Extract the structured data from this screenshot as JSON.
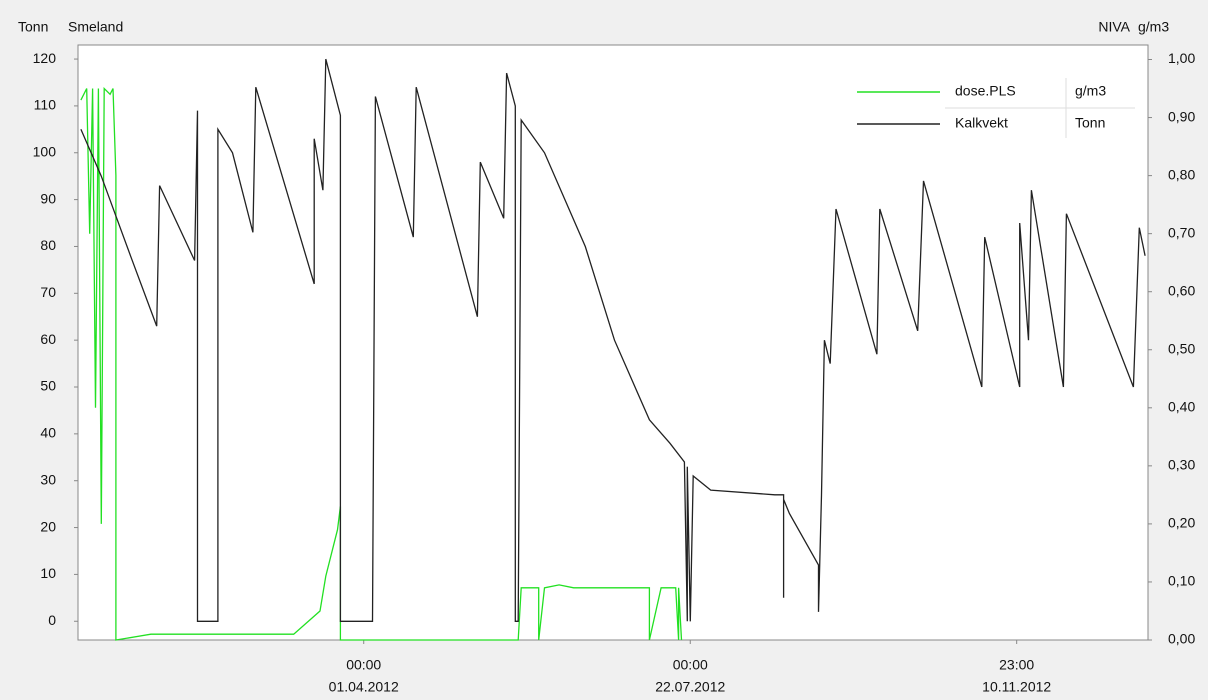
{
  "chart_data": {
    "type": "line",
    "title": "Smeland",
    "title_right": "NIVA",
    "y_label": "Tonn",
    "y2_label": "g/m3",
    "xlim": [
      "2011-12-25",
      "2012-12-26"
    ],
    "xticks": [
      {
        "value": "2012-04-01T00:00",
        "label": [
          "00:00",
          "01.04.2012"
        ]
      },
      {
        "value": "2012-07-22T00:00",
        "label": [
          "00:00",
          "22.07.2012"
        ]
      },
      {
        "value": "2012-11-10T23:00",
        "label": [
          "23:00",
          "10.11.2012"
        ]
      }
    ],
    "ylim": [
      -4,
      123
    ],
    "yticks": [
      0,
      10,
      20,
      30,
      40,
      50,
      60,
      70,
      80,
      90,
      100,
      110,
      120
    ],
    "y2lim": [
      0,
      1.025
    ],
    "y2ticks": [
      {
        "value": 0,
        "label": "0,00"
      },
      {
        "value": 0.1,
        "label": "0,10"
      },
      {
        "value": 0.2,
        "label": "0,20"
      },
      {
        "value": 0.3,
        "label": "0,30"
      },
      {
        "value": 0.4,
        "label": "0,40"
      },
      {
        "value": 0.5,
        "label": "0,50"
      },
      {
        "value": 0.6,
        "label": "0,60"
      },
      {
        "value": 0.7,
        "label": "0,70"
      },
      {
        "value": 0.8,
        "label": "0,80"
      },
      {
        "value": 0.9,
        "label": "0,90"
      },
      {
        "value": 1,
        "label": "1,00"
      }
    ],
    "grid": false,
    "legend": "upper right",
    "series": [
      {
        "name": "dose.PLS",
        "unit": "g/m3",
        "color": "#22e022",
        "axis": "y2",
        "x": [
          "2011-12-26",
          "2011-12-28",
          "2011-12-29",
          "2011-12-30",
          "2011-12-31",
          "2012-01-01",
          "2012-01-02",
          "2012-01-03",
          "2012-01-05",
          "2012-01-06",
          "2012-01-07",
          "2012-01-07",
          "2012-01-19",
          "2012-02-05",
          "2012-03-08",
          "2012-03-17",
          "2012-03-19",
          "2012-03-23",
          "2012-03-24",
          "2012-03-24",
          "2012-05-24",
          "2012-05-25",
          "2012-05-31",
          "2012-05-31",
          "2012-06-02",
          "2012-06-07",
          "2012-06-12",
          "2012-06-21",
          "2012-07-08",
          "2012-07-08",
          "2012-07-12",
          "2012-07-17",
          "2012-07-18",
          "2012-07-18",
          "2012-07-19"
        ],
        "values": [
          0.93,
          0.95,
          0.7,
          0.95,
          0.4,
          0.95,
          0.2,
          0.95,
          0.94,
          0.95,
          0.8,
          0,
          0.01,
          0.01,
          0.01,
          0.05,
          0.11,
          0.19,
          0.23,
          0,
          0,
          0.09,
          0.09,
          0,
          0.09,
          0.095,
          0.09,
          0.09,
          0.09,
          0,
          0.09,
          0.09,
          0,
          0.09,
          0
        ]
      },
      {
        "name": "Kalkvekt",
        "unit": "Tonn",
        "color": "#222222",
        "x": [
          "2011-12-26",
          "2012-01-02",
          "2012-01-12",
          "2012-01-21",
          "2012-01-22",
          "2012-02-03",
          "2012-02-04",
          "2012-02-04",
          "2012-02-11",
          "2012-02-11",
          "2012-02-16",
          "2012-02-23",
          "2012-02-24",
          "2012-03-15",
          "2012-03-15",
          "2012-03-18",
          "2012-03-19",
          "2012-03-24",
          "2012-03-24",
          "2012-04-04",
          "2012-04-05",
          "2012-04-18",
          "2012-04-19",
          "2012-05-10",
          "2012-05-11",
          "2012-05-19",
          "2012-05-20",
          "2012-05-23",
          "2012-05-23",
          "2012-05-24",
          "2012-05-25",
          "2012-06-02",
          "2012-06-16",
          "2012-06-26",
          "2012-07-08",
          "2012-07-15",
          "2012-07-20",
          "2012-07-21",
          "2012-07-21",
          "2012-07-22",
          "2012-07-23",
          "2012-07-29",
          "2012-08-20",
          "2012-08-23",
          "2012-08-23",
          "2012-08-23",
          "2012-08-25",
          "2012-09-04",
          "2012-09-04",
          "2012-09-05",
          "2012-09-06",
          "2012-09-08",
          "2012-09-10",
          "2012-09-24",
          "2012-09-25",
          "2012-10-08",
          "2012-10-10",
          "2012-10-30",
          "2012-10-31",
          "2012-11-12",
          "2012-11-12",
          "2012-11-15",
          "2012-11-16",
          "2012-11-27",
          "2012-11-28",
          "2012-12-21",
          "2012-12-23",
          "2012-12-25"
        ],
        "values": [
          105,
          95,
          78,
          63,
          93,
          77,
          109,
          0,
          0,
          105,
          100,
          83,
          114,
          72,
          103,
          92,
          120,
          108,
          0,
          0,
          112,
          82,
          114,
          65,
          98,
          86,
          117,
          110,
          0,
          0,
          107,
          100,
          80,
          60,
          43,
          38,
          34,
          0,
          33,
          0,
          31,
          28,
          27,
          27,
          5,
          26,
          23,
          12,
          2,
          27,
          60,
          55,
          88,
          57,
          88,
          62,
          94,
          50,
          82,
          50,
          85,
          60,
          92,
          50,
          87,
          50,
          84,
          78
        ]
      }
    ]
  }
}
